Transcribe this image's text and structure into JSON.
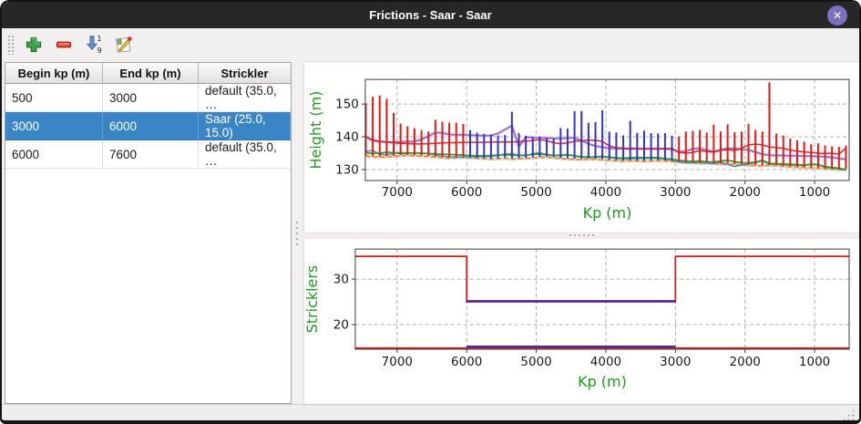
{
  "window": {
    "title": "Frictions - Saar - Saar",
    "close_glyph": "✕"
  },
  "toolbar": {
    "buttons": [
      "add",
      "remove",
      "sort",
      "edit"
    ]
  },
  "table": {
    "columns": [
      "Begin kp (m)",
      "End kp (m)",
      "Strickler"
    ],
    "rows": [
      {
        "begin": "500",
        "end": "3000",
        "strickler": "default (35.0, …",
        "selected": false
      },
      {
        "begin": "3000",
        "end": "6000",
        "strickler": "Saar (25.0, 15.0)",
        "selected": true
      },
      {
        "begin": "6000",
        "end": "7600",
        "strickler": "default (35.0, …",
        "selected": false
      }
    ]
  },
  "colors": {
    "selection_blue": "#3a85c6",
    "titlebar": "#272727",
    "close_button_purple": "#7d70c0",
    "axis_label_green": "#1e9b1e",
    "bar_red": "#e81717",
    "bar_blue_selected": "#3232cd",
    "grid_gray": "#b0b0b0"
  },
  "chart_data": [
    {
      "type": "line",
      "title": "",
      "xlabel": "Kp (m)",
      "ylabel": "Height (m)",
      "x_ticks": [
        7000,
        6000,
        5000,
        4000,
        3000,
        2000,
        1000
      ],
      "y_ticks": [
        130,
        140,
        150
      ],
      "xlim": [
        7460,
        500
      ],
      "x_reversed": true,
      "ylim": [
        126.9,
        157.5
      ],
      "grid": true,
      "selected_kp_range": [
        3000,
        6000
      ],
      "kp": [
        7450,
        7350,
        7250,
        7150,
        7050,
        6950,
        6850,
        6750,
        6650,
        6550,
        6450,
        6350,
        6250,
        6150,
        6050,
        5950,
        5850,
        5750,
        5650,
        5550,
        5450,
        5350,
        5250,
        5150,
        5050,
        4950,
        4850,
        4750,
        4650,
        4550,
        4450,
        4350,
        4250,
        4150,
        4050,
        3950,
        3850,
        3750,
        3650,
        3550,
        3450,
        3350,
        3250,
        3150,
        3050,
        2950,
        2850,
        2750,
        2650,
        2550,
        2450,
        2350,
        2250,
        2150,
        2050,
        1950,
        1850,
        1750,
        1650,
        1550,
        1450,
        1350,
        1250,
        1150,
        1050,
        950,
        850,
        750,
        650,
        550
      ],
      "section_range_bars": {
        "color": "#e81717",
        "selected_color": "#3232cd",
        "top": [
          150.2,
          152.2,
          152.6,
          151.6,
          147.3,
          144.0,
          143.2,
          142.6,
          142.0,
          141.6,
          145.2,
          144.6,
          144.3,
          144.3,
          143.9,
          142.0,
          141.3,
          140.9,
          140.7,
          140.4,
          140.5,
          147.6,
          141.1,
          140.3,
          139.9,
          140.1,
          139.7,
          139.5,
          142.7,
          142.5,
          147.8,
          147.8,
          144.3,
          144.5,
          148.1,
          141.6,
          141.3,
          140.4,
          144.9,
          141.2,
          141.9,
          141.1,
          141.0,
          141.1,
          140.3,
          140.1,
          141.6,
          141.8,
          142.1,
          141.3,
          143.7,
          141.6,
          143.8,
          141.4,
          141.6,
          144.0,
          142.1,
          141.6,
          156.6,
          141.0,
          140.4,
          139.5,
          138.9,
          138.5,
          137.7,
          138.0,
          137.4,
          137.1,
          136.9,
          137.3
        ],
        "bottom": [
          134.3,
          134.1,
          134.0,
          134.1,
          134.2,
          134.4,
          134.5,
          134.4,
          134.3,
          134.2,
          134.0,
          133.8,
          133.7,
          133.8,
          133.9,
          133.8,
          133.6,
          133.5,
          133.4,
          133.5,
          133.6,
          133.4,
          133.5,
          133.6,
          133.7,
          133.9,
          134.0,
          133.8,
          133.5,
          133.4,
          133.3,
          133.2,
          133.4,
          133.3,
          133.2,
          133.0,
          132.9,
          132.8,
          132.9,
          132.8,
          132.7,
          132.8,
          132.9,
          132.8,
          132.7,
          132.5,
          132.3,
          132.2,
          132.1,
          132.2,
          132.0,
          131.8,
          131.9,
          131.7,
          131.6,
          131.5,
          131.4,
          131.3,
          131.5,
          131.4,
          131.2,
          131.0,
          130.9,
          130.8,
          130.7,
          130.6,
          130.4,
          130.3,
          130.2,
          130.1
        ]
      },
      "series": [
        {
          "name": "orange-dashed",
          "color": "#ff8c1a",
          "width": 1.8,
          "dash": "5 3",
          "halo": "#d6d6d6",
          "values": [
            134.2,
            133.9,
            133.8,
            133.9,
            134.0,
            134.2,
            134.3,
            134.2,
            134.1,
            134.0,
            133.8,
            133.6,
            133.5,
            133.6,
            133.7,
            133.6,
            133.4,
            133.3,
            133.2,
            133.3,
            133.4,
            133.2,
            133.3,
            133.4,
            133.5,
            133.7,
            133.8,
            133.6,
            133.3,
            133.2,
            133.1,
            133.0,
            133.2,
            133.1,
            133.0,
            132.8,
            132.7,
            132.6,
            132.7,
            132.6,
            132.5,
            132.6,
            132.7,
            132.6,
            132.5,
            132.3,
            132.1,
            132.0,
            131.9,
            132.0,
            131.8,
            131.6,
            131.7,
            131.5,
            131.4,
            131.3,
            131.2,
            131.1,
            131.3,
            131.2,
            131.0,
            130.8,
            130.7,
            130.6,
            130.5,
            130.4,
            130.2,
            130.1,
            130.0,
            129.9
          ]
        },
        {
          "name": "steelblue",
          "color": "#4d8ac0",
          "width": 1.5,
          "dash": "",
          "halo": "",
          "values": [
            135.6,
            135.8,
            134.7,
            134.5,
            134.9,
            135.2,
            135.1,
            135.0,
            135.0,
            134.9,
            134.4,
            134.1,
            133.9,
            133.8,
            133.8,
            133.9,
            133.9,
            134.0,
            134.0,
            134.3,
            134.8,
            134.9,
            134.4,
            134.2,
            134.9,
            135.1,
            134.6,
            134.3,
            134.2,
            134.5,
            134.1,
            133.8,
            133.7,
            133.8,
            133.9,
            133.7,
            133.4,
            133.3,
            133.3,
            133.4,
            133.4,
            133.5,
            133.4,
            133.2,
            132.9,
            132.3,
            132.1,
            132.1,
            132.2,
            131.9,
            131.8,
            132.3,
            131.6,
            130.9,
            131.4,
            131.7,
            132.1,
            132.6,
            131.6,
            131.6,
            131.5,
            131.4,
            131.3,
            131.2,
            131.6,
            131.4,
            130.7,
            130.4,
            130.2,
            129.8
          ]
        },
        {
          "name": "green",
          "color": "#2ca02c",
          "width": 1.8,
          "dash": "",
          "halo": "",
          "values": [
            135.2,
            134.9,
            135.0,
            135.3,
            135.1,
            134.9,
            135.0,
            135.1,
            135.0,
            134.9,
            134.8,
            134.7,
            134.6,
            134.5,
            134.4,
            134.3,
            134.2,
            134.2,
            134.3,
            134.4,
            134.5,
            134.4,
            134.3,
            134.4,
            134.6,
            134.7,
            134.5,
            134.3,
            134.4,
            134.5,
            134.2,
            133.9,
            133.8,
            133.9,
            134.0,
            133.8,
            133.6,
            133.5,
            133.6,
            133.7,
            133.6,
            133.7,
            133.6,
            133.4,
            133.1,
            132.8,
            132.6,
            132.5,
            132.6,
            132.4,
            132.3,
            132.6,
            132.8,
            132.4,
            132.1,
            132.0,
            132.3,
            132.8,
            131.9,
            131.8,
            131.7,
            131.6,
            131.5,
            131.4,
            131.6,
            131.5,
            130.9,
            130.6,
            130.4,
            130.0
          ]
        },
        {
          "name": "purple",
          "color": "#9467bd",
          "width": 1.5,
          "dash": "",
          "halo": "#dcc6e8",
          "values": [
            140.0,
            138.9,
            138.5,
            138.4,
            138.4,
            138.4,
            138.5,
            138.6,
            139.2,
            140.2,
            141.3,
            141.2,
            140.7,
            140.6,
            140.6,
            140.5,
            140.4,
            140.3,
            140.4,
            141.0,
            142.2,
            143.4,
            137.0,
            139.9,
            139.8,
            139.7,
            139.6,
            139.5,
            139.5,
            139.6,
            139.7,
            138.8,
            137.9,
            137.2,
            136.8,
            136.5,
            136.4,
            136.3,
            136.3,
            136.3,
            136.3,
            136.3,
            136.3,
            136.3,
            136.2,
            135.4,
            135.6,
            136.3,
            136.5,
            135.9,
            135.5,
            136.0,
            136.5,
            136.4,
            136.2,
            136.0,
            135.3,
            134.7,
            134.4,
            134.3,
            134.3,
            134.2,
            134.2,
            134.1,
            134.1,
            134.0,
            133.9,
            133.7,
            133.4,
            133.1
          ]
        },
        {
          "name": "red",
          "color": "#d62728",
          "width": 1.5,
          "dash": "",
          "halo": "",
          "values": [
            140.1,
            139.0,
            138.6,
            138.4,
            138.2,
            138.0,
            137.9,
            137.8,
            137.8,
            137.9,
            138.0,
            138.1,
            138.2,
            138.2,
            138.3,
            138.3,
            138.3,
            138.3,
            138.4,
            138.4,
            138.4,
            138.4,
            138.5,
            138.6,
            138.9,
            139.1,
            138.8,
            138.2,
            137.9,
            138.2,
            138.6,
            138.8,
            139.0,
            138.9,
            138.6,
            137.2,
            136.7,
            136.5,
            136.5,
            136.4,
            136.4,
            136.4,
            136.4,
            136.4,
            136.4,
            135.3,
            135.0,
            135.2,
            135.8,
            135.5,
            135.3,
            135.9,
            136.1,
            135.8,
            136.5,
            137.5,
            137.8,
            137.5,
            136.9,
            136.7,
            136.5,
            135.9,
            135.6,
            135.4,
            135.2,
            135.0,
            134.9,
            135.0,
            134.7,
            136.5
          ]
        }
      ]
    },
    {
      "type": "step",
      "title": "",
      "xlabel": "Kp (m)",
      "ylabel": "Stricklers",
      "x_ticks": [
        7000,
        6000,
        5000,
        4000,
        3000,
        2000,
        1000
      ],
      "y_ticks": [
        20,
        30
      ],
      "xlim": [
        7590,
        490
      ],
      "x_reversed": true,
      "ylim": [
        14.4,
        36.6
      ],
      "grid": true,
      "main_strickler": {
        "values": [
          35,
          25,
          35
        ],
        "breakpoints_kp": [
          6000,
          3000
        ]
      },
      "floodplain_strickler": 15,
      "selected_kp_range": [
        3000,
        6000
      ],
      "base_color": "#e31a1a",
      "selected_color": "#2a2ac8"
    }
  ]
}
